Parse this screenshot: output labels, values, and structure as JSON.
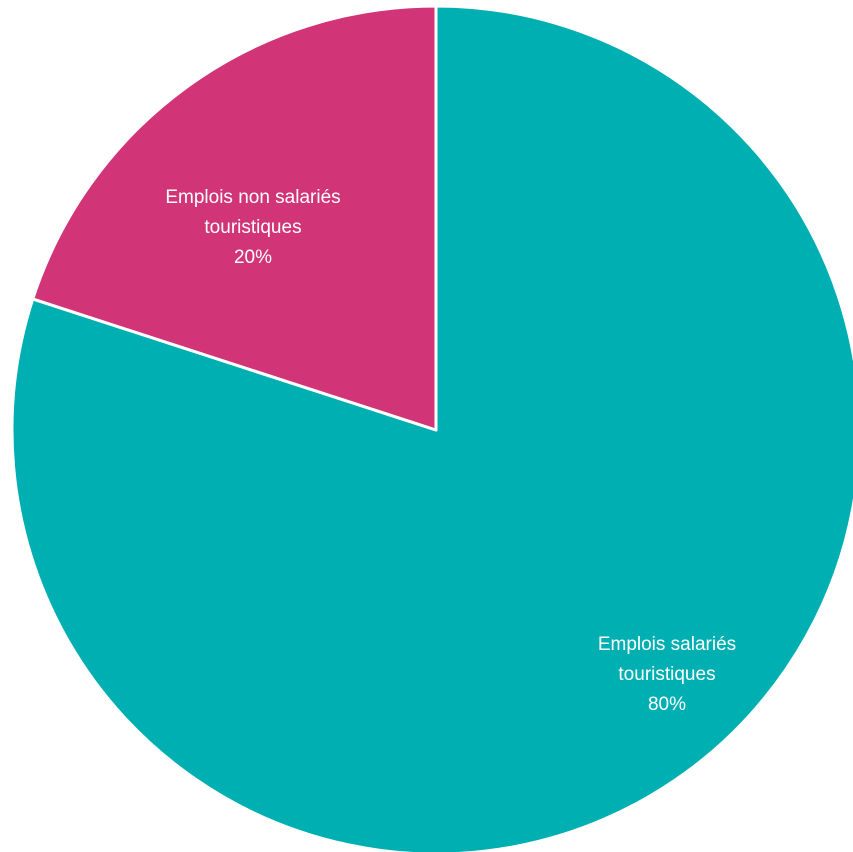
{
  "chart_data": {
    "type": "pie",
    "start_angle_deg": 0,
    "direction": "clockwise",
    "slices": [
      {
        "label_lines": [
          "Emplois salariés",
          "touristiques"
        ],
        "percent_label": "80%",
        "value": 80,
        "color": "#00AFB2"
      },
      {
        "label_lines": [
          "Emplois non salariés",
          "touristiques"
        ],
        "percent_label": "20%",
        "value": 20,
        "color": "#D13477"
      }
    ]
  }
}
